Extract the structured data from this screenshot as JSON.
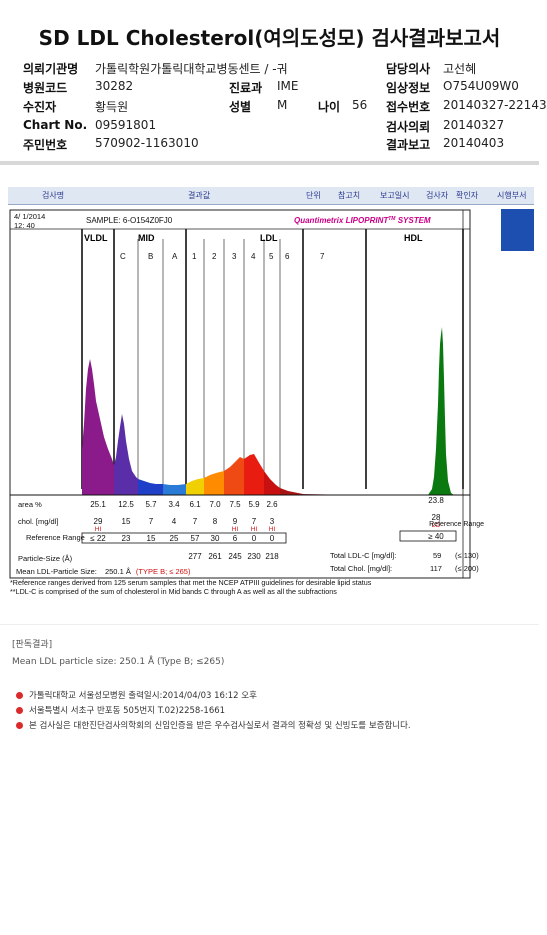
{
  "title": "SD LDL Cholesterol(여의도성모) 검사결과보고서",
  "header": {
    "left": [
      {
        "label": "의뢰기관명",
        "value": "가톨릭학원가톨릭대학교병동센트 / -궈"
      },
      {
        "label": "병원코드",
        "value": "30282"
      },
      {
        "label": "수진자",
        "value": "황득원"
      },
      {
        "label": "Chart No.",
        "value": "09591801"
      },
      {
        "label": "주민번호",
        "value": "570902-1163010"
      }
    ],
    "mid": [
      {
        "label": "진료과",
        "value": "IME"
      },
      {
        "label": "성별",
        "value": "M"
      }
    ],
    "age_label": "나이",
    "age_value": "56",
    "right": [
      {
        "label": "담당의사",
        "value": "고선혜"
      },
      {
        "label": "임상정보",
        "value": "O754U09W0"
      },
      {
        "label": "접수번호",
        "value": "20140327-22143"
      },
      {
        "label": "검사의뢰",
        "value": "20140327"
      },
      {
        "label": "결과보고",
        "value": "20140403"
      }
    ]
  },
  "report_columns": [
    "검사명",
    "결과값",
    "단위",
    "참고치",
    "보고일시",
    "검사자",
    "확인자",
    "시행부서"
  ],
  "chart_data": {
    "type": "area",
    "date": "4/ 1/2014",
    "time": "12: 40",
    "sample": "SAMPLE:  6-O154Z0FJ0",
    "brand": "Quantimetrix LIPOPRINT",
    "brand_tm": "TM",
    "brand_suffix": " SYSTEM",
    "groups": [
      "VLDL",
      "MID",
      "LDL",
      "HDL"
    ],
    "subbands": [
      "C",
      "B",
      "A",
      "1",
      "2",
      "3",
      "4",
      "5",
      "6",
      "7"
    ],
    "row_labels": {
      "area": "area %",
      "chol": "chol. [mg/dl]",
      "ref": "Reference Range",
      "size": "Particle-Size (Å)"
    },
    "area_values": [
      "25.1",
      "12.5",
      "5.7",
      "3.4",
      "6.1",
      "7.0",
      "7.5",
      "5.9",
      "2.6"
    ],
    "hdl_area": "23.8",
    "chol_values": [
      "29",
      "15",
      "7",
      "4",
      "7",
      "8",
      "9",
      "7",
      "3"
    ],
    "chol_flags": [
      "HI",
      "",
      "",
      "",
      "",
      "",
      "HI",
      "HI",
      "HI"
    ],
    "hdl_chol": "28",
    "hdl_flag": "LO",
    "ref_values": [
      "≤ 22",
      "23",
      "15",
      "25",
      "57",
      "30",
      "6",
      "0",
      "0"
    ],
    "hdl_ref": "≥ 40",
    "ref_side_label": "Reference Range",
    "size_values": [
      "277",
      "261",
      "245",
      "230",
      "218"
    ],
    "total_ldl_label": "Total LDL-C [mg/dl]:",
    "total_ldl_value": "59",
    "total_ldl_ref": "(≤ 130)",
    "total_chol_label": "Total Chol. [mg/dl]:",
    "total_chol_value": "117",
    "total_chol_ref": "(≤ 200)",
    "mean_size_label": "Mean LDL-Particle Size:",
    "mean_size_value": "250.1 Å",
    "mean_size_type": "(TYPE B; ≤ 265)"
  },
  "notes": [
    "*Reference ranges derived from 125 serum samples that met the NCEP ATPIII guidelines for desirable lipid status",
    "**LDL-C is comprised of the sum of cholesterol in Mid bands C through A as well as all the subfractions"
  ],
  "result": {
    "heading": "[판독결과]",
    "text": "Mean LDL particle size: 250.1 Å (Type B; ≤265)"
  },
  "footer": [
    "가톨릭대학교 서울성모병원      출력일시:2014/04/03 16:12 오후",
    "서울특별시 서초구 반포동 505번지 T.02)2258-1661",
    "본 검사실은 대한진단검사의학회의 신임인증을 받은 우수검사실로서 결과의 정확성 및 신빙도를 보증합니다."
  ],
  "colors": {
    "vldl": "#8b1a8a",
    "mid_c": "#5a2ea8",
    "mid_b": "#1f3fc8",
    "mid_a": "#2a7ad8",
    "ldl1": "#f0d000",
    "ldl2": "#ff8c00",
    "ldl3": "#ee2a10",
    "hdl": "#0a7a10",
    "brand": "#cc0088"
  }
}
